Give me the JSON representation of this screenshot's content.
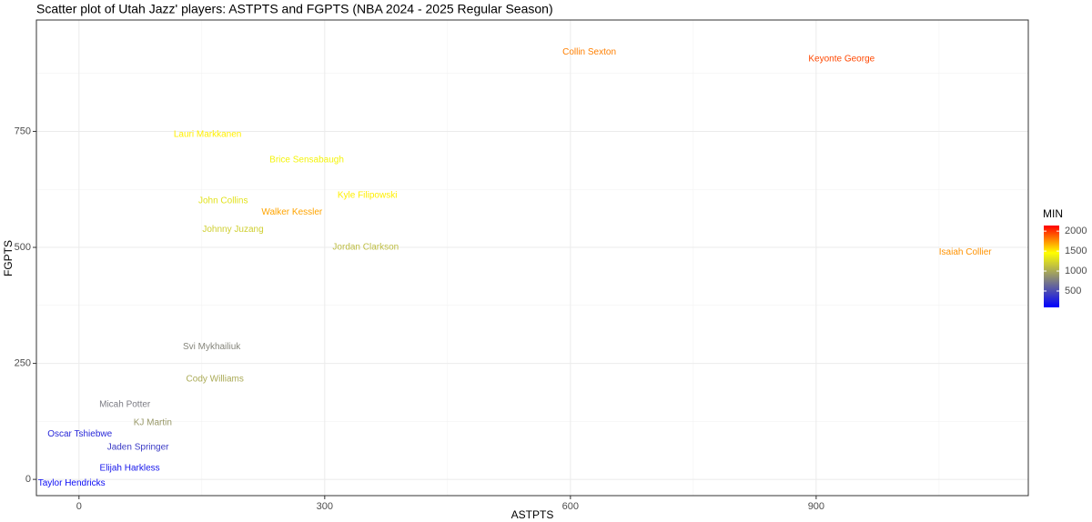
{
  "chart_data": {
    "type": "scatter",
    "title": "Scatter plot of Utah Jazz' players: ASTPTS and FGPTS (NBA 2024 - 2025 Regular Season)",
    "x_label": "ASTPTS",
    "y_label": "FGPTS",
    "labels": [
      "Collin Sexton",
      "Keyonte George",
      "Lauri Markkanen",
      "Brice Sensabaugh",
      "Kyle Filipowski",
      "John Collins",
      "Walker Kessler",
      "Johnny Juzang",
      "Jordan Clarkson",
      "Isaiah Collier",
      "Svi Mykhailiuk",
      "Cody Williams",
      "Micah Potter",
      "KJ Martin",
      "Oscar Tshiebwe",
      "Jaden Springer",
      "Elijah Harkless",
      "Taylor Hendricks"
    ],
    "x": [
      623,
      931,
      157,
      278,
      352,
      176,
      260,
      188,
      350,
      1082,
      162,
      166,
      56,
      90,
      1,
      72,
      62,
      -9
    ],
    "values": [
      921,
      906,
      743,
      688,
      612,
      600,
      576,
      539,
      500,
      490,
      286,
      216,
      161,
      122,
      98,
      69,
      24,
      -8
    ],
    "min": [
      1800,
      1950,
      1500,
      1400,
      1500,
      1300,
      1700,
      1200,
      1100,
      1750,
      800,
      1000,
      750,
      900,
      300,
      400,
      200,
      150
    ],
    "xlim": [
      -52,
      1159
    ],
    "ylim": [
      -35,
      990
    ],
    "xticks": [
      0,
      300,
      600,
      900
    ],
    "yticks": [
      0,
      250,
      500,
      750
    ],
    "grid": true,
    "color_legend": {
      "title": "MIN",
      "colors": [
        "#0000ff",
        "#808080",
        "#ffff00",
        "#ff0000"
      ],
      "limits": [
        90,
        2140
      ],
      "ticks": [
        500,
        1000,
        1500,
        2000
      ]
    }
  }
}
